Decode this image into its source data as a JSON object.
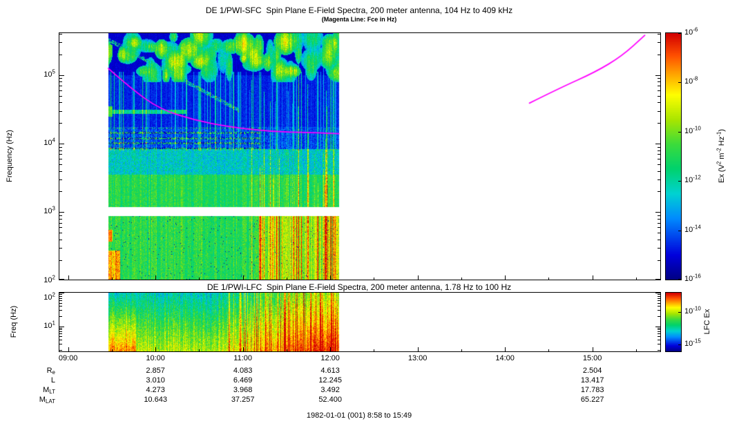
{
  "figure": {
    "caption": "1982-01-01 (001) 8:58 to 15:49"
  },
  "axis_notation": {
    "log_base": "10"
  },
  "main_plot": {
    "title": "DE 1/PWI-SFC  Spin Plane E-Field Spectra, 200 meter antenna, 104 Hz to 409 kHz",
    "subtitle": "(Magenta Line: Fce in Hz)",
    "ylabel": "Frequency (Hz)",
    "ytick_exponents": [
      5,
      4,
      3,
      2
    ],
    "colorbar": {
      "tick_exponents": [
        -6,
        -8,
        -10,
        -12,
        -14,
        -16
      ],
      "label_parts": [
        {
          "t": "Ex (V"
        },
        {
          "sup": "2"
        },
        {
          "t": " m"
        },
        {
          "sup": "-2"
        },
        {
          "t": " Hz"
        },
        {
          "sup": "-1"
        },
        {
          "t": ")"
        }
      ]
    }
  },
  "lfc_plot": {
    "title": "DE 1/PWI-LFC  Spin Plane E-Field Spectra, 200 meter antenna, 1.78 Hz to 100 Hz",
    "ylabel": "Freq (Hz)",
    "ytick_exponents": [
      2,
      1
    ],
    "colorbar": {
      "label": "LFC Ex",
      "ticks": [
        {
          "exponent": -10,
          "fraction": 0.33
        },
        {
          "exponent": -15,
          "fraction": 0.88
        }
      ]
    }
  },
  "time_axis": {
    "ticks": [
      {
        "label": "09:00",
        "hour": 9
      },
      {
        "label": "10:00",
        "hour": 10
      },
      {
        "label": "11:00",
        "hour": 11
      },
      {
        "label": "12:00",
        "hour": 12
      },
      {
        "label": "13:00",
        "hour": 13
      },
      {
        "label": "14:00",
        "hour": 14
      },
      {
        "label": "15:00",
        "hour": 15
      }
    ]
  },
  "ephemeris_table": {
    "value_hours": [
      10,
      11,
      12,
      15
    ],
    "rows": [
      {
        "label_parts": [
          {
            "t": "R"
          },
          {
            "sub": "e"
          }
        ],
        "values": [
          "2.857",
          "4.083",
          "4.613",
          "2.504"
        ]
      },
      {
        "label_parts": [
          {
            "t": "L"
          }
        ],
        "values": [
          "3.010",
          "6.469",
          "12.245",
          "13.417"
        ]
      },
      {
        "label_parts": [
          {
            "t": "M"
          },
          {
            "sub": "LT"
          }
        ],
        "values": [
          "4.273",
          "3.968",
          "3.492",
          "17.783"
        ]
      },
      {
        "label_parts": [
          {
            "t": "M"
          },
          {
            "sub": "LAT"
          }
        ],
        "values": [
          "10.643",
          "37.257",
          "52.400",
          "65.227"
        ]
      }
    ]
  },
  "chart_data": [
    {
      "type": "heatmap",
      "instrument": "DE 1/PWI-SFC",
      "title": "DE 1/PWI-SFC  Spin Plane E-Field Spectra, 200 meter antenna, 104 Hz to 409 kHz",
      "xlabel": "Time (UT), 1982-01-01 (001), 8:58 to 15:49",
      "ylabel": "Frequency (Hz)",
      "y_scale": "log",
      "y_range_hz": [
        104,
        409000
      ],
      "x_ticks": [
        "09:00",
        "10:00",
        "11:00",
        "12:00",
        "13:00",
        "14:00",
        "15:00"
      ],
      "x_range_hours": [
        8.9,
        15.78
      ],
      "colorbar_label": "Ex (V^2 m^-2 Hz^-1)",
      "colorbar_range": [
        1e-16,
        1e-06
      ],
      "data_time_extent_hours": [
        9.46,
        12.1
      ],
      "white_gap_log10hz": [
        2.95,
        3.08
      ],
      "features": [
        "Broadband blue/cyan emissions from 09:28 to 12:06 spanning 104 Hz to ~400 kHz",
        "Green speckled emission band below ~3 kHz for the whole data interval",
        "Intense vertical burst structures 11:20-12:06 extending above 100 kHz",
        "Patchy bright green emission above 100 kHz, strongest 10:50-12:06",
        "Narrow cyan band near 30 kHz from 09:28 to 10:20",
        "Dotted banded structure between ~9 and ~17 kHz before 11:10",
        "White data-gap band just above 1 kHz",
        "Orange enhancement at lowest frequencies at the start of the pass"
      ],
      "fce_line": {
        "color": "#ff00ff",
        "legend": "Fce in Hz",
        "segments": [
          {
            "points_hours_hz": [
              [
                9.46,
                125000
              ],
              [
                9.73,
                62000
              ],
              [
                10.05,
                32000
              ],
              [
                10.44,
                22000
              ],
              [
                10.84,
                17600
              ],
              [
                11.31,
                15000
              ],
              [
                11.79,
                14500
              ],
              [
                12.1,
                14000
              ]
            ]
          },
          {
            "points_hours_hz": [
              [
                14.28,
                39000
              ],
              [
                14.63,
                65000
              ],
              [
                15.03,
                110000
              ],
              [
                15.34,
                190000
              ],
              [
                15.6,
                380000
              ]
            ]
          }
        ]
      }
    },
    {
      "type": "heatmap",
      "instrument": "DE 1/PWI-LFC",
      "title": "DE 1/PWI-LFC  Spin Plane E-Field Spectra, 200 meter antenna, 1.78 Hz to 100 Hz",
      "ylabel": "Freq (Hz)",
      "y_scale": "log",
      "y_range_hz": [
        1.78,
        100
      ],
      "x_range_hours": [
        8.9,
        15.78
      ],
      "colorbar_label": "LFC Ex",
      "colorbar_tick_values": [
        1e-10,
        1e-15
      ],
      "data_time_extent_hours": [
        9.46,
        12.1
      ],
      "features": [
        "Green at upper frequencies, yellow-orange-red toward lowest frequencies",
        "Intensity increases after ~11:00; broadband red burst 11:20-12:06",
        "Fine vertical striations throughout the data interval"
      ]
    }
  ]
}
